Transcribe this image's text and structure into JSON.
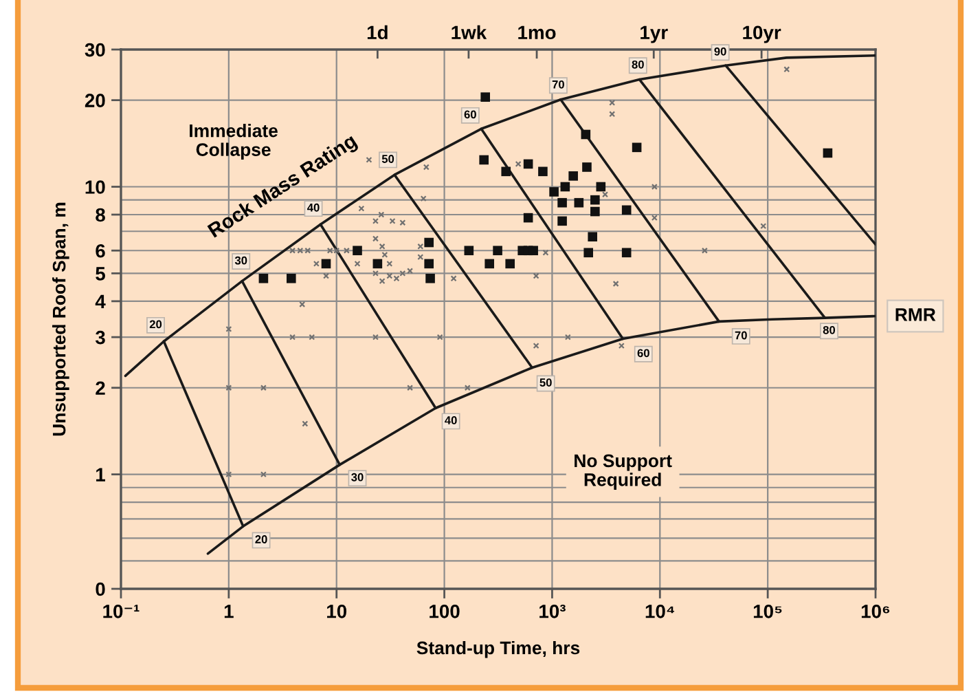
{
  "chart_data": {
    "type": "scatter",
    "xlabel": "Stand-up Time, hrs",
    "ylabel": "Unsupported Roof Span, m",
    "log": "xy",
    "grid": true,
    "xlim": [
      0.1,
      1000000
    ],
    "xticks": [
      {
        "value": 0.1,
        "label": "10⁻¹"
      },
      1,
      10,
      100,
      {
        "value": 1000,
        "label": "10³"
      },
      {
        "value": 10000,
        "label": "10⁴"
      },
      {
        "value": 100000,
        "label": "10⁵"
      },
      {
        "value": 1000000,
        "label": "10⁶"
      }
    ],
    "ylim": [
      0.4,
      30
    ],
    "yticks": [
      {
        "value": 0.4,
        "label": "0"
      },
      {
        "value": 0.5,
        "label": null
      },
      {
        "value": 0.6,
        "label": null
      },
      {
        "value": 0.7,
        "label": null
      },
      {
        "value": 0.8,
        "label": null
      },
      {
        "value": 0.9,
        "label": null
      },
      1,
      2,
      3,
      4,
      5,
      6,
      {
        "value": 7,
        "label": null
      },
      8,
      {
        "value": 9,
        "label": null
      },
      10,
      20,
      30
    ],
    "ref_lines": [
      {
        "axis": "x",
        "value": 24,
        "label": "1d"
      },
      {
        "axis": "x",
        "value": 168,
        "label": "1wk"
      },
      {
        "axis": "x",
        "value": 720,
        "label": "1mo"
      },
      {
        "axis": "x",
        "value": 8760,
        "label": "1yr"
      },
      {
        "axis": "x",
        "value": 87600,
        "label": "10yr"
      }
    ],
    "series": [
      {
        "type": "line",
        "color": "#1a1a1a",
        "marker": "none",
        "line_style": "solid",
        "x": [
          0.11,
          0.25,
          1.33,
          7.1,
          34.5,
          220,
          1200,
          6460,
          40700,
          149000,
          1000000
        ],
        "values": [
          2.2,
          2.9,
          4.7,
          7.4,
          11.0,
          15.9,
          20.1,
          23.6,
          26.4,
          28.1,
          28.6
        ]
      },
      {
        "type": "line",
        "color": "#1a1a1a",
        "marker": "none",
        "line_style": "solid",
        "x": [
          0.64,
          1.36,
          10.7,
          83,
          652,
          4530,
          35300,
          110000,
          339000,
          1000000
        ],
        "values": [
          0.53,
          0.66,
          1.08,
          1.7,
          2.35,
          2.96,
          3.4,
          3.46,
          3.5,
          3.55
        ]
      },
      {
        "type": "line",
        "color": "#1a1a1a",
        "marker": "none",
        "line_style": "solid",
        "x": [
          0.25,
          1.36
        ],
        "values": [
          2.9,
          0.66
        ]
      },
      {
        "type": "line",
        "color": "#1a1a1a",
        "marker": "none",
        "line_style": "solid",
        "x": [
          1.33,
          10.7
        ],
        "values": [
          4.7,
          1.08
        ]
      },
      {
        "type": "line",
        "color": "#1a1a1a",
        "marker": "none",
        "line_style": "solid",
        "x": [
          7.1,
          83
        ],
        "values": [
          7.4,
          1.7
        ]
      },
      {
        "type": "line",
        "color": "#1a1a1a",
        "marker": "none",
        "line_style": "solid",
        "x": [
          34.5,
          652
        ],
        "values": [
          11.0,
          2.35
        ]
      },
      {
        "type": "line",
        "color": "#1a1a1a",
        "marker": "none",
        "line_style": "solid",
        "x": [
          220,
          4530
        ],
        "values": [
          15.9,
          2.96
        ]
      },
      {
        "type": "line",
        "color": "#1a1a1a",
        "marker": "none",
        "line_style": "solid",
        "x": [
          1200,
          35300
        ],
        "values": [
          20.1,
          3.4
        ]
      },
      {
        "type": "line",
        "color": "#1a1a1a",
        "marker": "none",
        "line_style": "solid",
        "x": [
          6460,
          339000
        ],
        "values": [
          23.6,
          3.5
        ]
      },
      {
        "type": "line",
        "color": "#1a1a1a",
        "marker": "none",
        "line_style": "solid",
        "x": [
          40700,
          1000000
        ],
        "values": [
          26.4,
          6.3
        ]
      },
      {
        "color": "#111111",
        "marker": "square",
        "x": [
          2.1,
          3.8,
          8.0,
          15.6,
          24,
          72,
          72,
          74,
          169,
          312,
          262,
          407,
          530,
          600,
          670,
          240,
          233,
          373,
          600,
          820,
          2050,
          6100,
          2100,
          1570,
          1040,
          1320,
          2830,
          1240,
          1770,
          2500,
          2500,
          4900,
          600,
          1240,
          2370,
          2170,
          4900,
          360000
        ],
        "values": [
          4.8,
          4.8,
          5.4,
          6.0,
          5.4,
          6.4,
          5.4,
          4.8,
          6.0,
          6.0,
          5.4,
          5.4,
          6.0,
          6.0,
          6.0,
          20.5,
          12.4,
          11.3,
          12.0,
          11.3,
          15.2,
          13.7,
          11.7,
          10.9,
          9.6,
          10.0,
          10.0,
          8.8,
          8.8,
          9.0,
          8.2,
          8.3,
          7.8,
          7.6,
          6.7,
          5.9,
          5.9,
          13.1
        ]
      },
      {
        "color": "#707070",
        "marker": "cross",
        "x": [
          1.0,
          3.9,
          4.6,
          5.4,
          6.5,
          8.0,
          8.7,
          10,
          12.4,
          15.6,
          4.8,
          17,
          20,
          26,
          23,
          33,
          41,
          64,
          68,
          23,
          26.5,
          28,
          31,
          23,
          26.5,
          31,
          36,
          41,
          48,
          60,
          60,
          122,
          3.9,
          5.9,
          23,
          91,
          1.0,
          2.1,
          48,
          164,
          5.1,
          1.0,
          2.1,
          710,
          1400,
          4400,
          3600,
          3600,
          485,
          3100,
          8900,
          8900,
          870,
          710,
          3900,
          26000,
          91000,
          150000
        ],
        "values": [
          3.2,
          6.0,
          6.0,
          6.0,
          5.4,
          4.9,
          6.0,
          6.0,
          6.0,
          5.4,
          3.9,
          8.4,
          12.4,
          8.0,
          7.6,
          7.6,
          7.5,
          9.1,
          11.7,
          6.6,
          6.2,
          5.8,
          5.4,
          5.0,
          4.7,
          4.9,
          4.8,
          5.0,
          5.1,
          6.2,
          5.7,
          4.8,
          3.0,
          3.0,
          3.0,
          3.0,
          2.0,
          2.0,
          2.0,
          2.0,
          1.5,
          1.0,
          1.0,
          2.8,
          3.0,
          2.8,
          19.6,
          17.9,
          12.0,
          9.4,
          10.0,
          7.8,
          5.9,
          4.9,
          4.6,
          6.0,
          7.3,
          25.6
        ]
      }
    ],
    "annotations": [
      "Immediate\nCollapse",
      "Rock Mass Rating",
      "No Support\nRequired",
      {
        "text": "RMR",
        "x": 1000000,
        "y": 3.55
      },
      {
        "text": "20",
        "x": 0.21,
        "y": 3.3
      },
      {
        "text": "30",
        "x": 1.3,
        "y": 5.5
      },
      {
        "text": "40",
        "x": 6.1,
        "y": 8.4
      },
      {
        "text": "50",
        "x": 30,
        "y": 12.4
      },
      {
        "text": "60",
        "x": 174,
        "y": 17.7
      },
      {
        "text": "70",
        "x": 1140,
        "y": 22.5
      },
      {
        "text": "80",
        "x": 6250,
        "y": 26.4
      },
      {
        "text": "90",
        "x": 36300,
        "y": 29.3
      },
      {
        "text": "20",
        "x": 2.0,
        "y": 0.59
      },
      {
        "text": "30",
        "x": 15.6,
        "y": 0.97
      },
      {
        "text": "40",
        "x": 115,
        "y": 1.53
      },
      {
        "text": "50",
        "x": 873,
        "y": 2.07
      },
      {
        "text": "60",
        "x": 7030,
        "y": 2.62
      },
      {
        "text": "70",
        "x": 56500,
        "y": 3.02
      },
      {
        "text": "80",
        "x": 371000,
        "y": 3.15
      }
    ]
  }
}
